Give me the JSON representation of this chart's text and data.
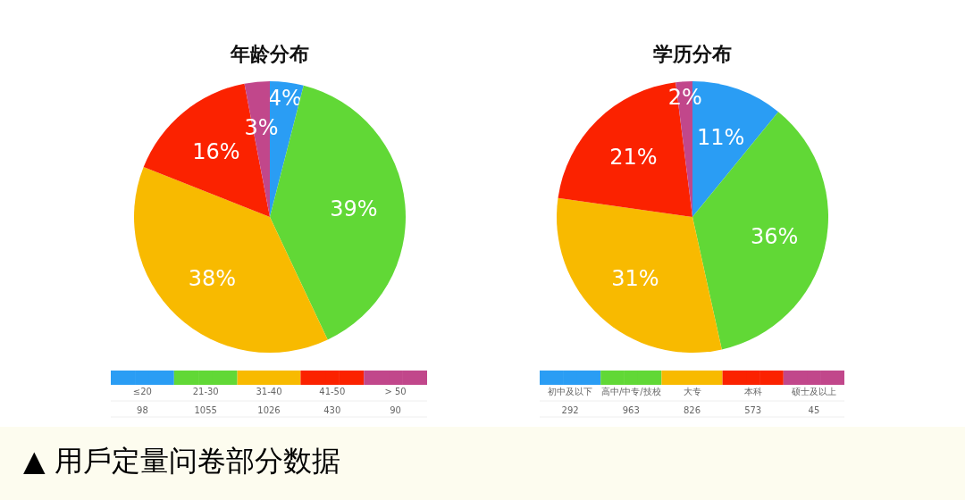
{
  "chart_data": [
    {
      "type": "pie",
      "title": "年龄分布",
      "categories": [
        "≤20",
        "21-30",
        "31-40",
        "41-50",
        "> 50"
      ],
      "values": [
        4,
        39,
        38,
        16,
        3
      ],
      "value_labels": [
        "4%",
        "39%",
        "38%",
        "16%",
        "3%"
      ],
      "colors": [
        "#2a9df4",
        "#61d836",
        "#f8ba00",
        "#fb2200",
        "#c1478b"
      ],
      "legend": "bottom",
      "annotations": [
        "98",
        "1055",
        "1026",
        "430",
        "90",
        "▲ 用戶定量问卷部分数据"
      ]
    },
    {
      "type": "pie",
      "title": "学历分布",
      "categories": [
        "初中及以下",
        "高中/中专/技校",
        "大专",
        "本科",
        "硕士及以上"
      ],
      "values": [
        11,
        36,
        31,
        21,
        2
      ],
      "value_labels": [
        "11%",
        "36%",
        "31%",
        "21%",
        "2%"
      ],
      "colors": [
        "#2a9df4",
        "#61d836",
        "#f8ba00",
        "#fb2200",
        "#c1478b"
      ],
      "legend": "bottom",
      "annotations": [
        "292",
        "963",
        "826",
        "573",
        "45"
      ]
    }
  ]
}
